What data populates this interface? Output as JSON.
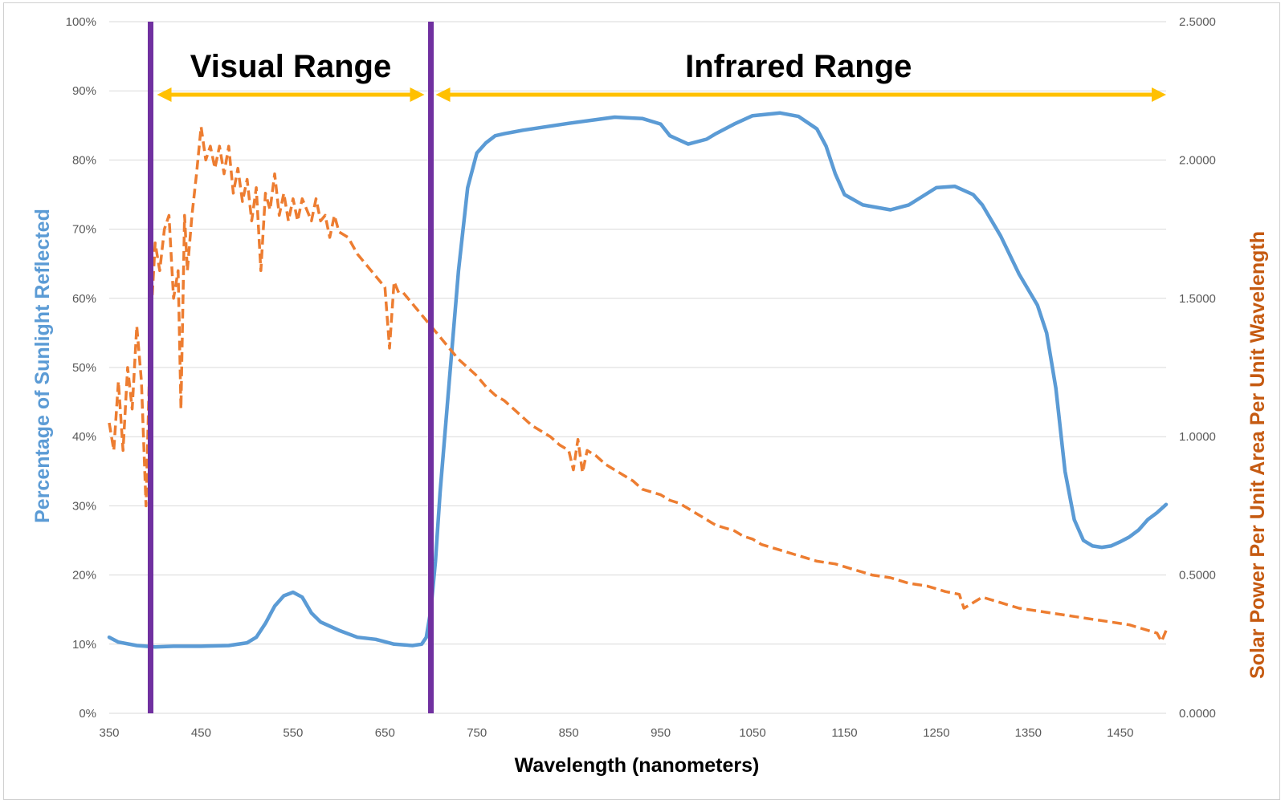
{
  "chart_data": {
    "type": "line",
    "xlabel": "Wavelength (nanometers)",
    "ylabel_left": "Percentage of Sunlight Reflected",
    "ylabel_right": "Solar Power Per Unit Area Per Unit Wavelength",
    "xlim": [
      350,
      1500
    ],
    "ylim_left": [
      0,
      100
    ],
    "ylim_right": [
      0,
      2.5
    ],
    "x_ticks": [
      "350",
      "450",
      "550",
      "650",
      "750",
      "850",
      "950",
      "1050",
      "1150",
      "1250",
      "1350",
      "1450"
    ],
    "y_left_ticks": [
      "0%",
      "10%",
      "20%",
      "30%",
      "40%",
      "50%",
      "60%",
      "70%",
      "80%",
      "90%",
      "100%"
    ],
    "y_right_ticks": [
      "0.0000",
      "0.5000",
      "1.0000",
      "1.5000",
      "2.0000",
      "2.5000"
    ],
    "grid": true,
    "colors": {
      "reflectance": "#5b9bd5",
      "solar": "#ed7d31",
      "boundary": "#7030a0",
      "arrow": "#ffc000",
      "left_title": "#5b9bd5",
      "right_title": "#c55a11"
    },
    "annotations": [
      {
        "text": "Visual Range",
        "x_start": 395,
        "x_end": 700
      },
      {
        "text": "Infrared Range",
        "x_start": 700,
        "x_end": 1500
      }
    ],
    "vertical_lines_x": [
      395,
      700
    ],
    "series": [
      {
        "axis": "left",
        "style": "solid",
        "x": [
          350,
          360,
          380,
          400,
          420,
          450,
          480,
          500,
          510,
          520,
          530,
          540,
          550,
          560,
          570,
          580,
          600,
          620,
          640,
          660,
          680,
          690,
          695,
          700,
          705,
          710,
          720,
          730,
          740,
          750,
          760,
          770,
          780,
          800,
          850,
          900,
          930,
          950,
          960,
          980,
          1000,
          1010,
          1030,
          1050,
          1080,
          1100,
          1120,
          1130,
          1140,
          1150,
          1170,
          1200,
          1220,
          1250,
          1270,
          1290,
          1300,
          1320,
          1340,
          1360,
          1370,
          1380,
          1390,
          1400,
          1410,
          1420,
          1430,
          1440,
          1450,
          1460,
          1470,
          1480,
          1490,
          1500
        ],
        "y": [
          11,
          10.3,
          9.8,
          9.6,
          9.7,
          9.7,
          9.8,
          10.2,
          11,
          13,
          15.5,
          17,
          17.5,
          16.8,
          14.5,
          13.2,
          12,
          11,
          10.7,
          10,
          9.8,
          10,
          11,
          15,
          22,
          32,
          48,
          64,
          76,
          81,
          82.5,
          83.5,
          83.8,
          84.3,
          85.3,
          86.2,
          86,
          85.2,
          83.5,
          82.3,
          83,
          83.8,
          85.2,
          86.4,
          86.8,
          86.3,
          84.5,
          82,
          78,
          75,
          73.5,
          72.8,
          73.5,
          76,
          76.2,
          75,
          73.5,
          69,
          63.5,
          59,
          55,
          47,
          35,
          28,
          25,
          24.2,
          24,
          24.2,
          24.8,
          25.5,
          26.5,
          28,
          29,
          30.2
        ]
      },
      {
        "axis": "right",
        "style": "dashed",
        "x": [
          350,
          355,
          360,
          365,
          370,
          375,
          380,
          385,
          390,
          395,
          400,
          405,
          410,
          415,
          420,
          425,
          428,
          432,
          435,
          440,
          445,
          450,
          455,
          460,
          465,
          470,
          475,
          480,
          485,
          490,
          495,
          500,
          505,
          510,
          515,
          520,
          525,
          530,
          535,
          540,
          545,
          550,
          555,
          560,
          565,
          570,
          575,
          580,
          585,
          590,
          595,
          600,
          610,
          620,
          630,
          640,
          650,
          655,
          660,
          665,
          670,
          680,
          690,
          700,
          710,
          720,
          730,
          740,
          750,
          760,
          770,
          780,
          790,
          800,
          810,
          820,
          830,
          840,
          850,
          855,
          860,
          865,
          870,
          880,
          890,
          900,
          910,
          920,
          930,
          940,
          950,
          960,
          970,
          980,
          990,
          1000,
          1005,
          1010,
          1020,
          1030,
          1040,
          1050,
          1060,
          1070,
          1080,
          1090,
          1100,
          1120,
          1140,
          1160,
          1180,
          1200,
          1220,
          1240,
          1260,
          1275,
          1280,
          1300,
          1320,
          1340,
          1360,
          1380,
          1400,
          1420,
          1440,
          1460,
          1480,
          1490,
          1495,
          1500
        ],
        "y": [
          1.05,
          0.95,
          1.2,
          0.95,
          1.25,
          1.1,
          1.4,
          1.2,
          0.75,
          1.4,
          1.7,
          1.6,
          1.75,
          1.8,
          1.5,
          1.6,
          1.1,
          1.8,
          1.6,
          1.8,
          1.95,
          2.12,
          2.0,
          2.05,
          1.97,
          2.05,
          1.95,
          2.05,
          1.88,
          1.97,
          1.85,
          1.93,
          1.78,
          1.9,
          1.6,
          1.88,
          1.82,
          1.95,
          1.8,
          1.88,
          1.78,
          1.86,
          1.78,
          1.86,
          1.82,
          1.78,
          1.86,
          1.78,
          1.8,
          1.72,
          1.8,
          1.74,
          1.72,
          1.66,
          1.62,
          1.58,
          1.54,
          1.32,
          1.56,
          1.52,
          1.52,
          1.48,
          1.44,
          1.4,
          1.36,
          1.32,
          1.28,
          1.25,
          1.22,
          1.18,
          1.15,
          1.13,
          1.1,
          1.07,
          1.04,
          1.02,
          1.0,
          0.97,
          0.95,
          0.88,
          0.99,
          0.87,
          0.95,
          0.93,
          0.9,
          0.88,
          0.86,
          0.84,
          0.81,
          0.8,
          0.79,
          0.77,
          0.76,
          0.74,
          0.72,
          0.7,
          0.69,
          0.68,
          0.67,
          0.66,
          0.64,
          0.63,
          0.61,
          0.6,
          0.59,
          0.58,
          0.57,
          0.55,
          0.54,
          0.52,
          0.5,
          0.49,
          0.47,
          0.46,
          0.44,
          0.43,
          0.38,
          0.42,
          0.4,
          0.38,
          0.37,
          0.36,
          0.35,
          0.34,
          0.33,
          0.32,
          0.3,
          0.29,
          0.26,
          0.3
        ]
      }
    ]
  }
}
